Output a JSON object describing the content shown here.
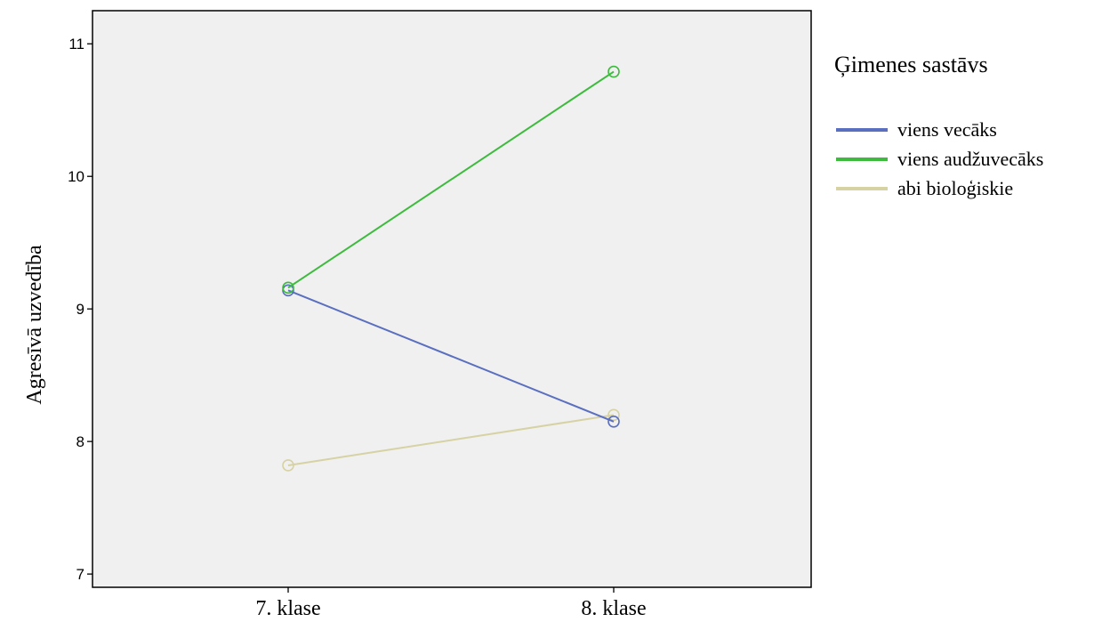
{
  "chart_data": {
    "type": "line",
    "ylabel": "Agresīvā uzvedība",
    "xlabel": "",
    "categories": [
      "7. klase",
      "8. klase"
    ],
    "ylim": [
      6.9,
      11.25
    ],
    "yticks": [
      7,
      8,
      9,
      10,
      11
    ],
    "grid": false,
    "legend_title": "Ģimenes sastāvs",
    "legend_position": "right",
    "plot_background": "#f0f0f0",
    "series": [
      {
        "name": "viens vecāks",
        "values": [
          9.14,
          8.15
        ],
        "color": "#5a6fc0"
      },
      {
        "name": "viens audžuvecāks",
        "values": [
          9.16,
          10.79
        ],
        "color": "#3dbb3d"
      },
      {
        "name": "abi bioloģiskie",
        "values": [
          7.82,
          8.2
        ],
        "color": "#d6d2a4"
      }
    ]
  }
}
